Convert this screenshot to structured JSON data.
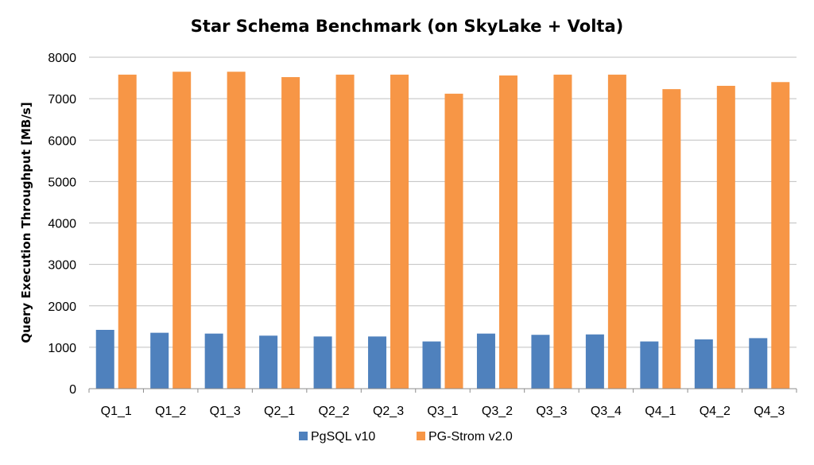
{
  "chart_data": {
    "type": "bar",
    "title": "Star Schema Benchmark (on SkyLake + Volta)",
    "xlabel": "",
    "ylabel": "Query Execution Throughput  [MB/s]",
    "ylim": [
      0,
      8000
    ],
    "yticks": [
      0,
      1000,
      2000,
      3000,
      4000,
      5000,
      6000,
      7000,
      8000
    ],
    "categories": [
      "Q1_1",
      "Q1_2",
      "Q1_3",
      "Q2_1",
      "Q2_2",
      "Q2_3",
      "Q3_1",
      "Q3_2",
      "Q3_3",
      "Q3_4",
      "Q4_1",
      "Q4_2",
      "Q4_3"
    ],
    "series": [
      {
        "name": "PgSQL v10",
        "color": "#4f81bd",
        "values": [
          1420,
          1350,
          1330,
          1280,
          1260,
          1260,
          1140,
          1330,
          1300,
          1310,
          1140,
          1190,
          1220
        ]
      },
      {
        "name": "PG-Strom v2.0",
        "color": "#f79646",
        "values": [
          7580,
          7650,
          7650,
          7520,
          7580,
          7580,
          7120,
          7560,
          7580,
          7580,
          7230,
          7310,
          7400
        ]
      }
    ],
    "grid": true,
    "legend": "bottom"
  }
}
